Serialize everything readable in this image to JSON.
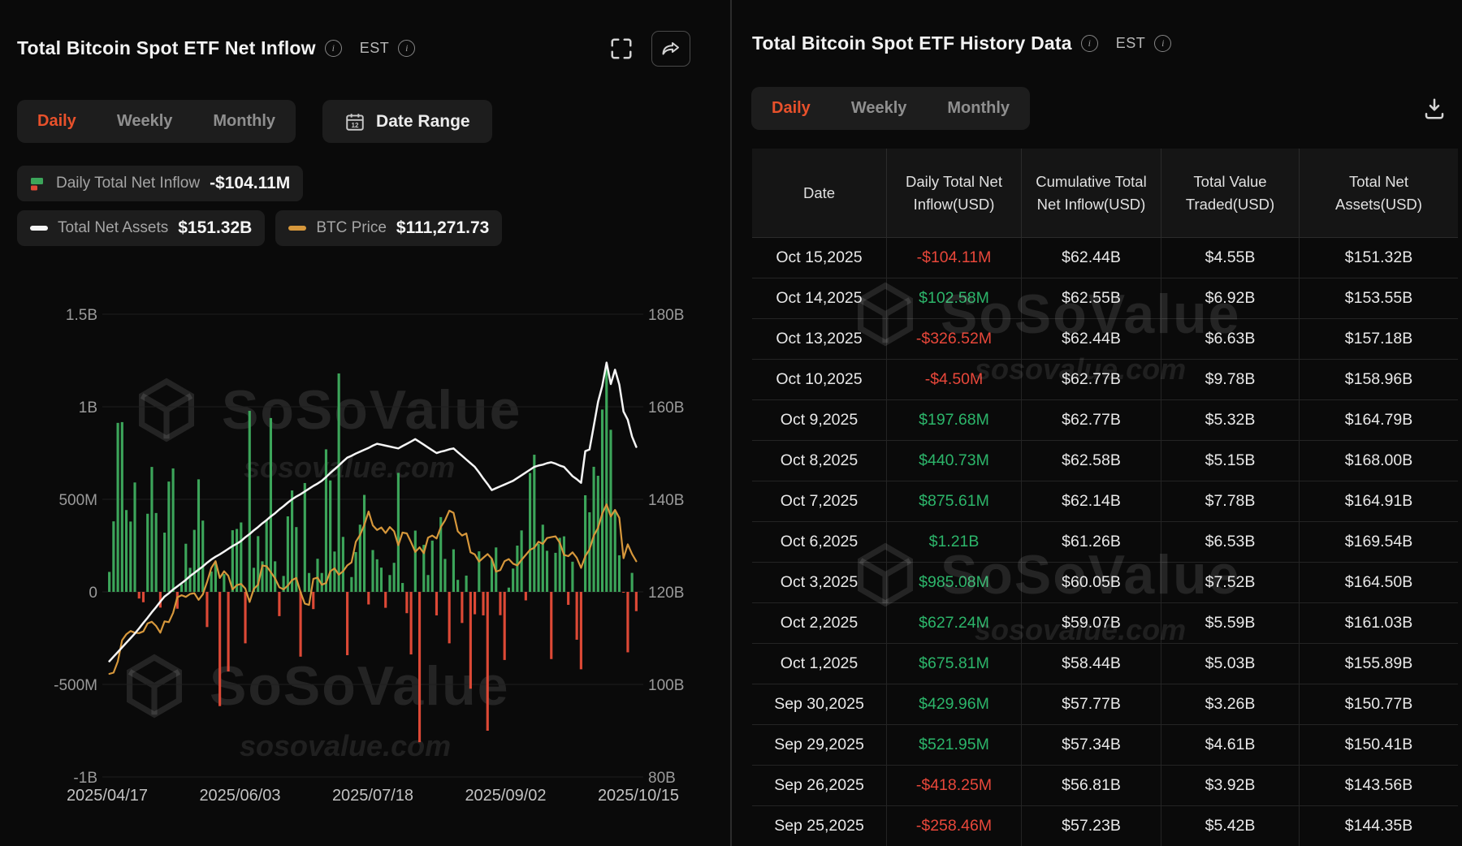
{
  "left_panel": {
    "title": "Total Bitcoin Spot ETF Net Inflow",
    "est_label": "EST",
    "tabs": [
      "Daily",
      "Weekly",
      "Monthly"
    ],
    "date_range_label": "Date Range",
    "legend": {
      "inflow_label": "Daily Total Net Inflow",
      "inflow_value": "-$104.11M",
      "assets_label": "Total Net Assets",
      "assets_value": "$151.32B",
      "price_label": "BTC Price",
      "price_value": "$111,271.73"
    }
  },
  "right_panel": {
    "title": "Total Bitcoin Spot ETF History Data",
    "est_label": "EST",
    "tabs": [
      "Daily",
      "Weekly",
      "Monthly"
    ],
    "table": {
      "columns": [
        "Date",
        "Daily Total Net Inflow(USD)",
        "Cumulative Total Net Inflow(USD)",
        "Total Value Traded(USD)",
        "Total Net Assets(USD)"
      ],
      "rows": [
        {
          "date": "Oct 15,2025",
          "inflow": "-$104.11M",
          "sign": "neg",
          "cumulative": "$62.44B",
          "traded": "$4.55B",
          "assets": "$151.32B"
        },
        {
          "date": "Oct 14,2025",
          "inflow": "$102.58M",
          "sign": "pos",
          "cumulative": "$62.55B",
          "traded": "$6.92B",
          "assets": "$153.55B"
        },
        {
          "date": "Oct 13,2025",
          "inflow": "-$326.52M",
          "sign": "neg",
          "cumulative": "$62.44B",
          "traded": "$6.63B",
          "assets": "$157.18B"
        },
        {
          "date": "Oct 10,2025",
          "inflow": "-$4.50M",
          "sign": "neg",
          "cumulative": "$62.77B",
          "traded": "$9.78B",
          "assets": "$158.96B"
        },
        {
          "date": "Oct 9,2025",
          "inflow": "$197.68M",
          "sign": "pos",
          "cumulative": "$62.77B",
          "traded": "$5.32B",
          "assets": "$164.79B"
        },
        {
          "date": "Oct 8,2025",
          "inflow": "$440.73M",
          "sign": "pos",
          "cumulative": "$62.58B",
          "traded": "$5.15B",
          "assets": "$168.00B"
        },
        {
          "date": "Oct 7,2025",
          "inflow": "$875.61M",
          "sign": "pos",
          "cumulative": "$62.14B",
          "traded": "$7.78B",
          "assets": "$164.91B"
        },
        {
          "date": "Oct 6,2025",
          "inflow": "$1.21B",
          "sign": "pos",
          "cumulative": "$61.26B",
          "traded": "$6.53B",
          "assets": "$169.54B"
        },
        {
          "date": "Oct 3,2025",
          "inflow": "$985.08M",
          "sign": "pos",
          "cumulative": "$60.05B",
          "traded": "$7.52B",
          "assets": "$164.50B"
        },
        {
          "date": "Oct 2,2025",
          "inflow": "$627.24M",
          "sign": "pos",
          "cumulative": "$59.07B",
          "traded": "$5.59B",
          "assets": "$161.03B"
        },
        {
          "date": "Oct 1,2025",
          "inflow": "$675.81M",
          "sign": "pos",
          "cumulative": "$58.44B",
          "traded": "$5.03B",
          "assets": "$155.89B"
        },
        {
          "date": "Sep 30,2025",
          "inflow": "$429.96M",
          "sign": "pos",
          "cumulative": "$57.77B",
          "traded": "$3.26B",
          "assets": "$150.77B"
        },
        {
          "date": "Sep 29,2025",
          "inflow": "$521.95M",
          "sign": "pos",
          "cumulative": "$57.34B",
          "traded": "$4.61B",
          "assets": "$150.41B"
        },
        {
          "date": "Sep 26,2025",
          "inflow": "-$418.25M",
          "sign": "neg",
          "cumulative": "$56.81B",
          "traded": "$3.92B",
          "assets": "$143.56B"
        },
        {
          "date": "Sep 25,2025",
          "inflow": "-$258.46M",
          "sign": "neg",
          "cumulative": "$57.23B",
          "traded": "$5.42B",
          "assets": "$144.35B"
        }
      ]
    }
  },
  "watermark": {
    "brand": "SoSoValue",
    "domain": "sosovalue.com"
  },
  "colors": {
    "accent": "#e8512b",
    "table_green": "#2cb56a",
    "table_red": "#e8473a",
    "bar_green": "#3ca55a",
    "bar_red": "#dd4936",
    "assets_line": "#f5f5f5",
    "price_line": "#d6973b"
  },
  "chart_data": {
    "type": "combo-bar-line",
    "title": "Total Bitcoin Spot ETF Net Inflow (Daily)",
    "y_left_ticks": [
      "1.5B",
      "1B",
      "500M",
      "0",
      "-500M",
      "-1B"
    ],
    "y_right_ticks": [
      "180B",
      "160B",
      "140B",
      "120B",
      "100B",
      "80B"
    ],
    "x_ticks": [
      "2025/04/17",
      "2025/06/03",
      "2025/07/18",
      "2025/09/02",
      "2025/10/15"
    ],
    "y_left_range_M": [
      -1000,
      1500
    ],
    "y_right_range_B": [
      80,
      180
    ],
    "price_axis_range": [
      60000,
      170000
    ],
    "grid": true,
    "legend_position": "top",
    "series": [
      {
        "name": "Daily Total Net Inflow (USD M)",
        "type": "bar",
        "values": [
          108,
          381,
          913,
          917,
          442,
          380,
          591,
          -36,
          -56,
          422,
          675,
          426,
          -85,
          320,
          596,
          667,
          -91,
          41,
          260,
          130,
          335,
          608,
          385,
          -190,
          110,
          163,
          -617,
          96,
          -430,
          333,
          340,
          375,
          -278,
          978,
          130,
          301,
          165,
          386,
          939,
          165,
          -131,
          86,
          408,
          548,
          350,
          -350,
          588,
          102,
          -93,
          179,
          102,
          770,
          602,
          218,
          1180,
          297,
          -342,
          80,
          215,
          363,
          524,
          -68,
          226,
          176,
          131,
          -86,
          91,
          157,
          643,
          48,
          -115,
          -338,
          331,
          -812,
          254,
          91,
          277,
          -127,
          404,
          178,
          -278,
          230,
          65,
          -168,
          88,
          -523,
          -121,
          219,
          -127,
          -750,
          179,
          240,
          -126,
          -368,
          23,
          126,
          250,
          332,
          -46,
          642,
          741,
          260,
          363,
          222,
          -363,
          211,
          292,
          300,
          -70,
          163,
          -258.46,
          -418.25,
          521.95,
          429.96,
          675.81,
          627.24,
          985.08,
          1210,
          875.61,
          440.73,
          197.68,
          -4.5,
          -326.52,
          102.58,
          -104.11
        ]
      },
      {
        "name": "Total Net Assets (USD B)",
        "type": "line",
        "axis": "right",
        "values": [
          105,
          106,
          107,
          108,
          109,
          110,
          111,
          112.1,
          113.3,
          114.4,
          115.6,
          116.7,
          117.9,
          119,
          119.7,
          120.5,
          121.2,
          121.9,
          122.6,
          123.4,
          124.1,
          124.8,
          125.5,
          126.3,
          127,
          127.6,
          128.1,
          128.7,
          129.3,
          129.9,
          130.4,
          131,
          131.8,
          132.5,
          133.3,
          134,
          134.8,
          135.5,
          136.3,
          137,
          137.8,
          138.5,
          139.3,
          140,
          140.6,
          141.1,
          141.7,
          142.3,
          142.9,
          143.4,
          144,
          144.8,
          145.7,
          146.5,
          147.3,
          148.2,
          149,
          149.4,
          149.9,
          150.3,
          150.7,
          151.1,
          151.6,
          152,
          151.8,
          151.6,
          151.4,
          151.2,
          151,
          151.5,
          152,
          152.5,
          153,
          152.4,
          151.8,
          151.2,
          150.6,
          150,
          150.3,
          150.5,
          150.8,
          151,
          150.2,
          149.4,
          148.6,
          147.8,
          147,
          145.8,
          144.5,
          143.3,
          142,
          142.4,
          142.8,
          143.2,
          143.6,
          144,
          144.6,
          145.2,
          145.8,
          146.4,
          147,
          147.3,
          147.5,
          147.8,
          148,
          147.7,
          147.3,
          147,
          146,
          145,
          144.35,
          143.56,
          150.41,
          150.77,
          155.89,
          161.03,
          164.5,
          169.54,
          164.91,
          168,
          164.79,
          158.96,
          157.18,
          153.55,
          151.32
        ]
      },
      {
        "name": "BTC Price (USD)",
        "type": "line",
        "axis": "price",
        "values": [
          84500,
          84800,
          87500,
          92500,
          93900,
          94700,
          94300,
          94200,
          94600,
          96500,
          96900,
          95900,
          94300,
          97000,
          96800,
          99000,
          102700,
          103200,
          102800,
          103500,
          103700,
          102100,
          103400,
          106400,
          109700,
          111300,
          107300,
          108900,
          107800,
          104600,
          105600,
          105900,
          104800,
          101600,
          104700,
          105700,
          110300,
          110100,
          108700,
          107200,
          105100,
          104600,
          105500,
          106800,
          107300,
          103900,
          101200,
          100900,
          107100,
          107400,
          105700,
          106100,
          108900,
          109600,
          108100,
          108900,
          110300,
          111000,
          115900,
          117500,
          119900,
          123100,
          119800,
          118700,
          119300,
          118000,
          119400,
          118400,
          115100,
          118100,
          117900,
          115800,
          113500,
          114600,
          113200,
          116900,
          117400,
          116700,
          119400,
          121000,
          123300,
          122800,
          118400,
          117400,
          117900,
          113400,
          112900,
          111200,
          112100,
          113000,
          111900,
          108800,
          109200,
          111300,
          111800,
          110700,
          110300,
          111600,
          112800,
          114000,
          114500,
          115900,
          115400,
          116800,
          117000,
          117200,
          115700,
          112800,
          112500,
          113400,
          112100,
          109700,
          112500,
          114100,
          117400,
          119200,
          122600,
          124800,
          121900,
          123500,
          121600,
          112000,
          115300,
          113000,
          111271.73
        ]
      }
    ]
  }
}
